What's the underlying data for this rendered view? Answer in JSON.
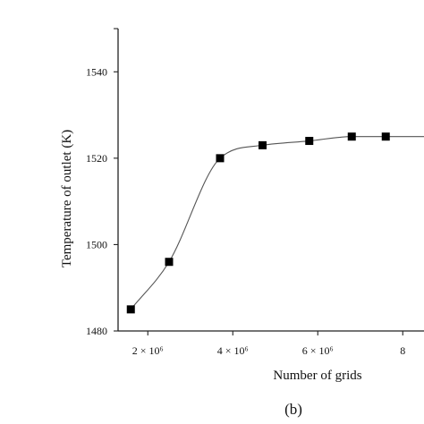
{
  "chart_data": {
    "type": "line",
    "xlabel": "Number of grids",
    "ylabel": "Temperature of outlet (K)",
    "caption": "(b)",
    "xlim": [
      1300000,
      8500000
    ],
    "ylim": [
      1480,
      1550
    ],
    "x_ticks": [
      {
        "value": 2000000,
        "label": "2 × 10⁶"
      },
      {
        "value": 4000000,
        "label": "4 × 10⁶"
      },
      {
        "value": 6000000,
        "label": "6 × 10⁶"
      },
      {
        "value": 8000000,
        "label": "8"
      }
    ],
    "y_ticks": [
      {
        "value": 1480,
        "label": "1480"
      },
      {
        "value": 1500,
        "label": "1500"
      },
      {
        "value": 1520,
        "label": "1520"
      },
      {
        "value": 1540,
        "label": "1540"
      }
    ],
    "series": [
      {
        "x": [
          1600000,
          2500000,
          3700000,
          4700000,
          5800000,
          6800000,
          7600000
        ],
        "y": [
          1485,
          1496,
          1520,
          1523,
          1524,
          1525,
          1525
        ]
      }
    ],
    "grid": false,
    "marker": "square"
  }
}
